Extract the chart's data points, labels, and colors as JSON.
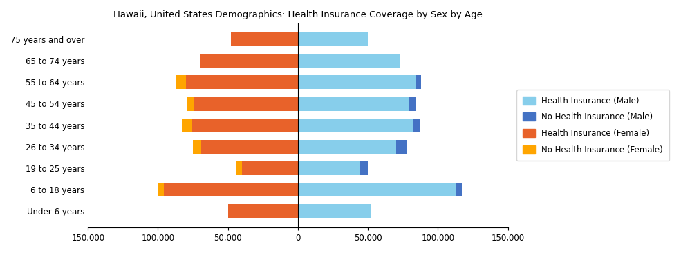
{
  "title": "Hawaii, United States Demographics: Health Insurance Coverage by Sex by Age",
  "age_groups": [
    "Under 6 years",
    "6 to 18 years",
    "19 to 25 years",
    "26 to 34 years",
    "35 to 44 years",
    "45 to 54 years",
    "55 to 64 years",
    "65 to 74 years",
    "75 years and over"
  ],
  "health_ins_male": [
    52000,
    113000,
    44000,
    70000,
    82000,
    79000,
    84000,
    73000,
    50000
  ],
  "no_health_ins_male": [
    0,
    4000,
    6000,
    8000,
    5000,
    5000,
    4000,
    0,
    0
  ],
  "health_ins_female": [
    50000,
    96000,
    40000,
    69000,
    76000,
    74000,
    80000,
    70000,
    48000
  ],
  "no_health_ins_female": [
    0,
    4000,
    4000,
    6000,
    7000,
    5000,
    7000,
    0,
    0
  ],
  "color_health_ins_male": "#87CEEB",
  "color_no_health_ins_male": "#4472C4",
  "color_health_ins_female": "#E8622A",
  "color_no_health_ins_female": "#FFA500",
  "xlim": [
    -150000,
    150000
  ],
  "xticks": [
    -150000,
    -100000,
    -50000,
    0,
    50000,
    100000,
    150000
  ],
  "xticklabels": [
    "150,000",
    "100,000",
    "50,000",
    "0",
    "50,000",
    "100,000",
    "150,000"
  ],
  "legend_labels": [
    "Health Insurance (Male)",
    "No Health Insurance (Male)",
    "Health Insurance (Female)",
    "No Health Insurance (Female)"
  ],
  "legend_colors": [
    "#87CEEB",
    "#4472C4",
    "#E8622A",
    "#FFA500"
  ]
}
